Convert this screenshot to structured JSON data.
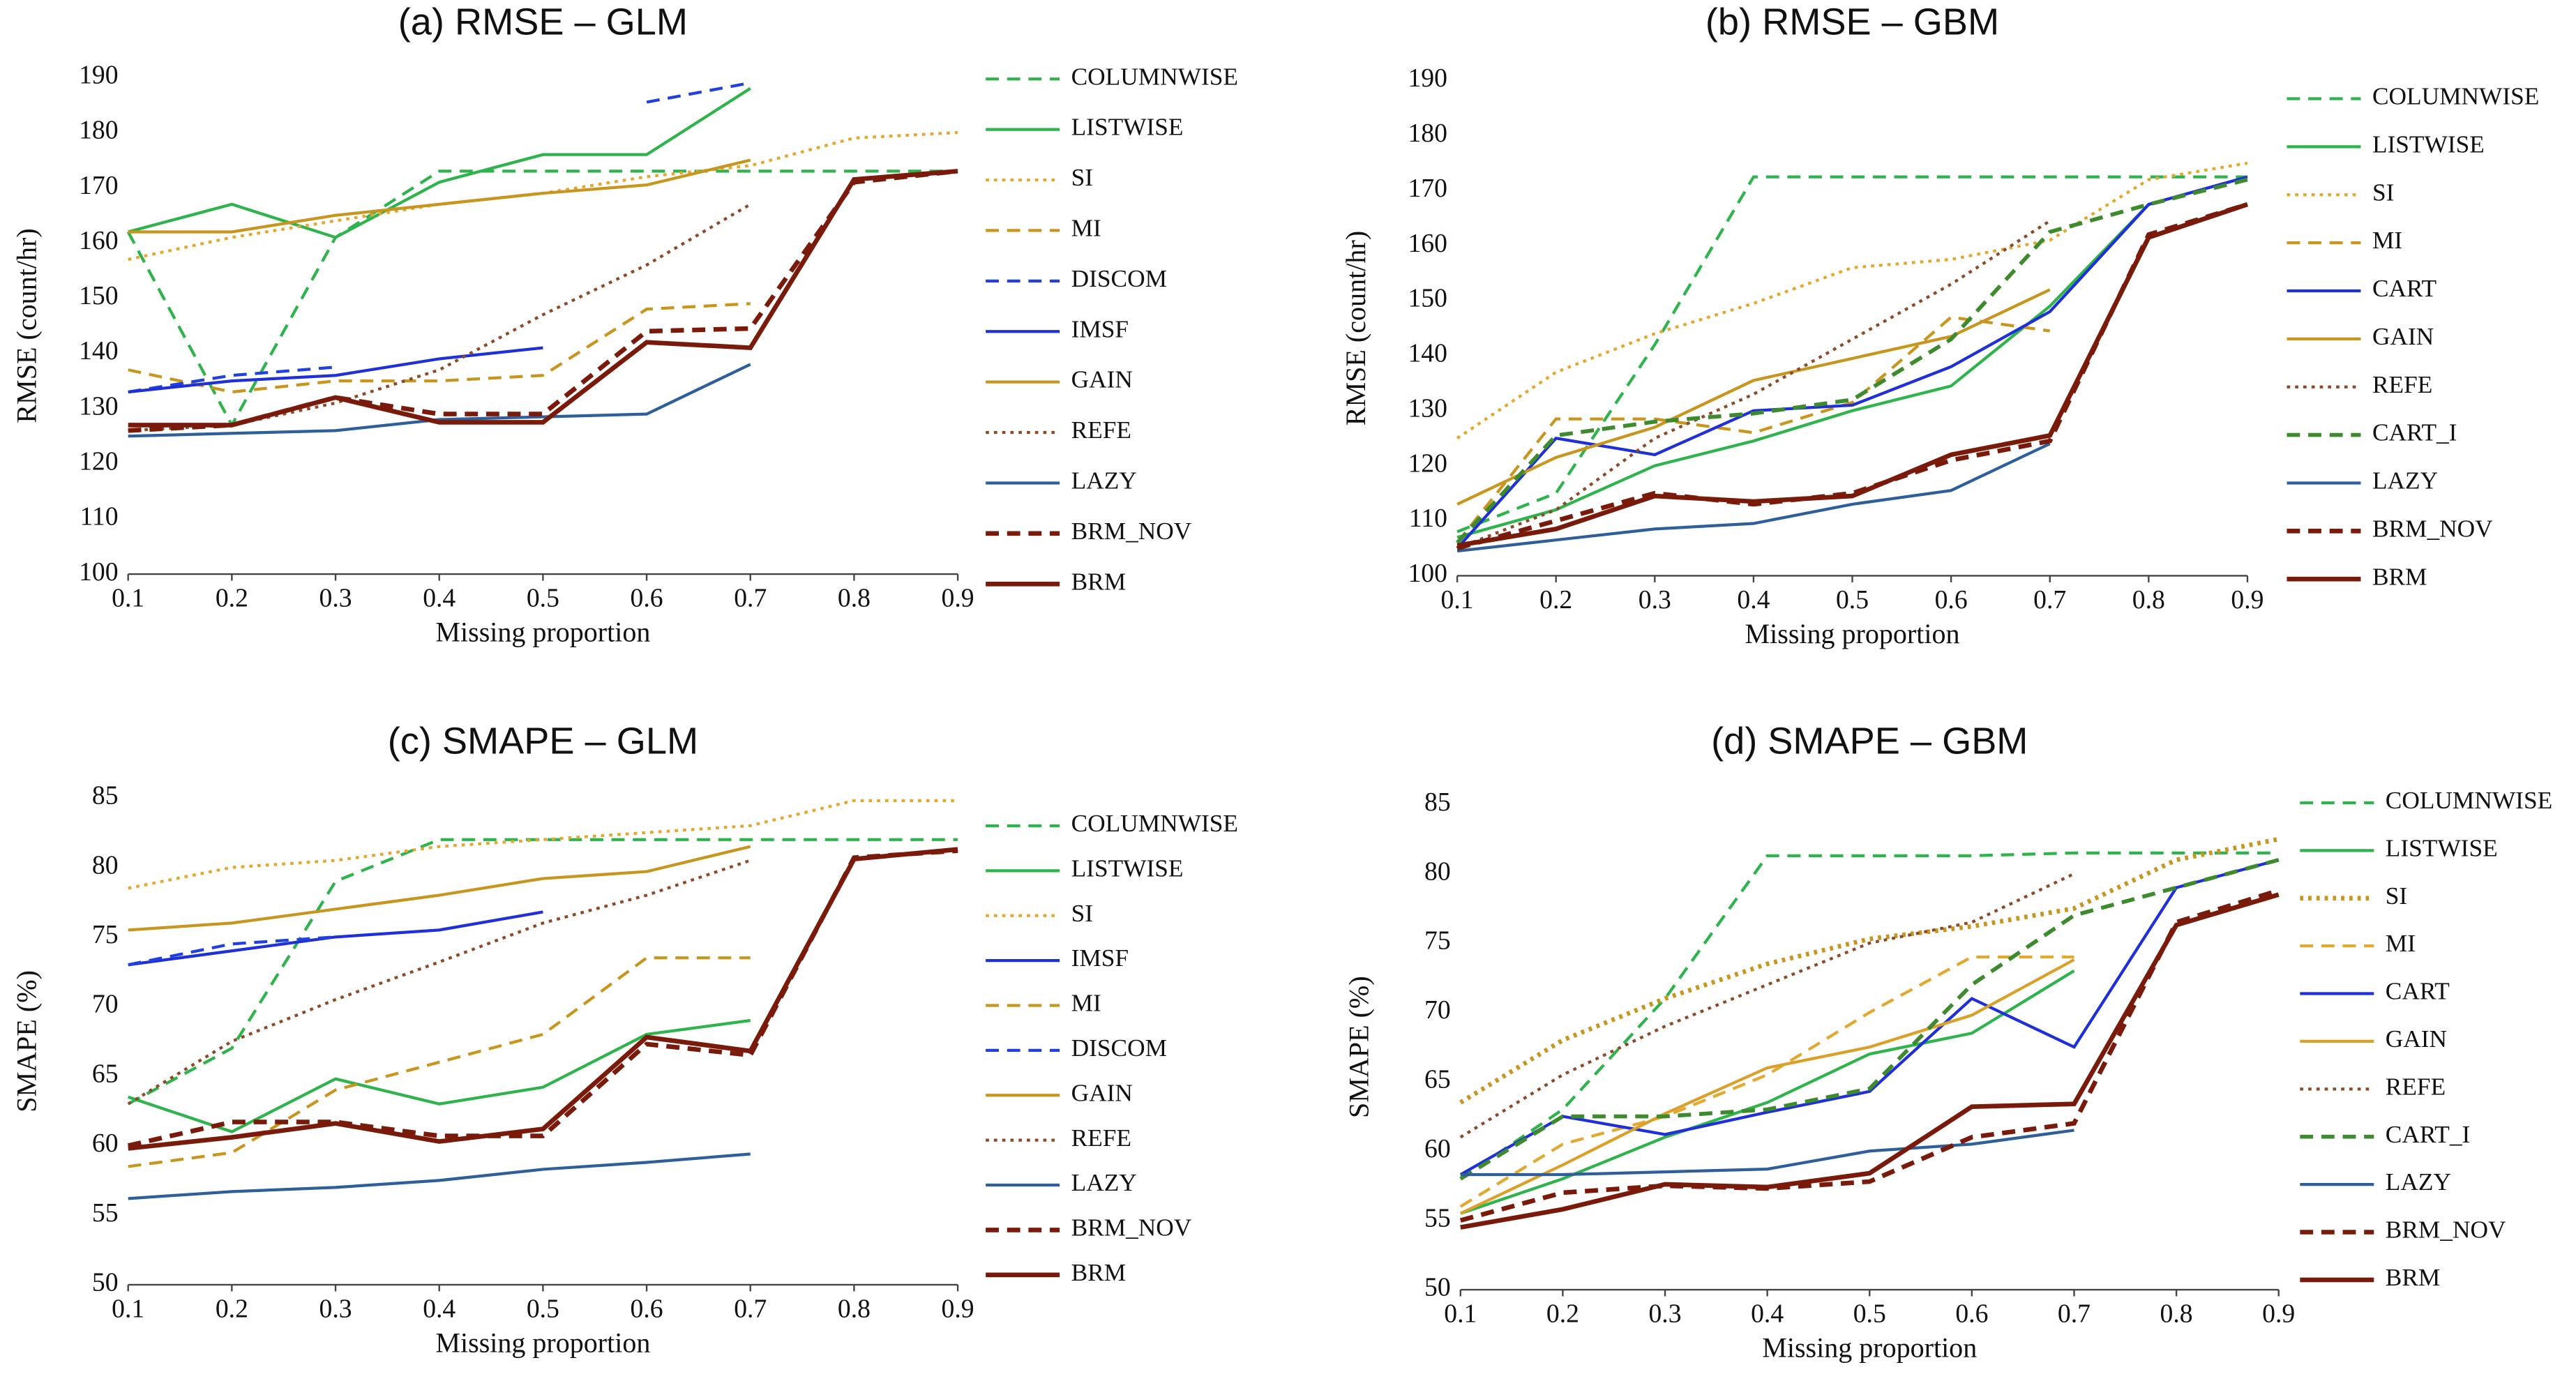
{
  "chart_data": [
    {
      "type": "line",
      "title": "(a) RMSE – GLM",
      "xlabel": "Missing proportion",
      "ylabel": "RMSE (count/hr)",
      "x": [
        0.1,
        0.2,
        0.3,
        0.4,
        0.5,
        0.6,
        0.7,
        0.8,
        0.9
      ],
      "xlim": [
        0.1,
        0.9
      ],
      "xticks": [
        0.1,
        0.2,
        0.3,
        0.4,
        0.5,
        0.6,
        0.7,
        0.8,
        0.9
      ],
      "ylim": [
        100,
        190
      ],
      "yticks": [
        100,
        110,
        120,
        130,
        140,
        150,
        160,
        170,
        180,
        190
      ],
      "legend": "right",
      "series": [
        {
          "name": "COLUMNWISE",
          "color": "#2fb34c",
          "dash": "dashed",
          "width": 1.8,
          "values": [
            162,
            127,
            161,
            173,
            173,
            173,
            173,
            173,
            173
          ]
        },
        {
          "name": "LISTWISE",
          "color": "#2fb34c",
          "dash": "solid",
          "width": 1.8,
          "values": [
            162,
            167,
            161,
            171,
            176,
            176,
            188,
            null,
            null
          ]
        },
        {
          "name": "SI",
          "color": "#e2a830",
          "dash": "dotted",
          "width": 1.8,
          "values": [
            157,
            161,
            164,
            167,
            169,
            172,
            174,
            179,
            180
          ]
        },
        {
          "name": "MI",
          "color": "#c8961e",
          "dash": "dashed",
          "width": 1.8,
          "values": [
            137,
            133,
            135,
            135,
            136,
            148,
            149,
            null,
            null
          ]
        },
        {
          "name": "DISCOM",
          "color": "#2040e0",
          "dash": "dashed",
          "width": 1.8,
          "values": [
            133,
            136,
            137.5,
            null,
            null,
            185.5,
            189,
            null,
            null
          ]
        },
        {
          "name": "IMSF",
          "color": "#2030d8",
          "dash": "solid",
          "width": 1.8,
          "values": [
            133,
            135,
            136,
            139,
            141,
            null,
            null,
            null,
            null
          ]
        },
        {
          "name": "GAIN",
          "color": "#c8961e",
          "dash": "solid",
          "width": 1.8,
          "values": [
            162,
            162,
            165,
            167,
            169,
            170.5,
            175,
            null,
            null
          ]
        },
        {
          "name": "REFE",
          "color": "#8b4a2a",
          "dash": "dotted",
          "width": 1.8,
          "values": [
            126,
            127,
            131,
            137,
            147,
            156,
            167,
            null,
            null
          ]
        },
        {
          "name": "LAZY",
          "color": "#2e5f9a",
          "dash": "solid",
          "width": 1.8,
          "values": [
            125,
            125.5,
            126,
            128,
            128.5,
            129,
            138,
            null,
            null
          ]
        },
        {
          "name": "BRM_NOV",
          "color": "#7a1a0a",
          "dash": "dashed",
          "width": 2.8,
          "values": [
            126,
            127,
            132,
            129,
            129,
            144,
            144.5,
            171,
            173
          ]
        },
        {
          "name": "BRM",
          "color": "#7a1a0a",
          "dash": "solid",
          "width": 2.8,
          "values": [
            127,
            127,
            132,
            127.5,
            127.5,
            142,
            141,
            171.5,
            173
          ]
        }
      ]
    },
    {
      "type": "line",
      "title": "(b) RMSE – GBM",
      "xlabel": "Missing proportion",
      "ylabel": "RMSE (count/hr)",
      "x": [
        0.1,
        0.2,
        0.3,
        0.4,
        0.5,
        0.6,
        0.7,
        0.8,
        0.9
      ],
      "xlim": [
        0.1,
        0.9
      ],
      "xticks": [
        0.1,
        0.2,
        0.3,
        0.4,
        0.5,
        0.6,
        0.7,
        0.8,
        0.9
      ],
      "ylim": [
        100,
        190
      ],
      "yticks": [
        100,
        110,
        120,
        130,
        140,
        150,
        160,
        170,
        180,
        190
      ],
      "legend": "right",
      "series": [
        {
          "name": "COLUMNWISE",
          "color": "#2fb34c",
          "dash": "dashed",
          "width": 1.8,
          "values": [
            108,
            115,
            142,
            172.5,
            172.5,
            172.5,
            172.5,
            172.5,
            172.5
          ]
        },
        {
          "name": "LISTWISE",
          "color": "#2fb34c",
          "dash": "solid",
          "width": 1.8,
          "values": [
            107,
            112,
            120,
            124.5,
            130,
            134.5,
            149,
            167.5,
            172.5
          ]
        },
        {
          "name": "SI",
          "color": "#e2a830",
          "dash": "dotted",
          "width": 1.8,
          "values": [
            125,
            137,
            144,
            149.5,
            156,
            157.5,
            161,
            172,
            175
          ]
        },
        {
          "name": "MI",
          "color": "#c8961e",
          "dash": "dashed",
          "width": 1.8,
          "values": [
            106,
            128.5,
            128.5,
            126,
            131.5,
            147,
            144.5,
            null,
            null
          ]
        },
        {
          "name": "CART",
          "color": "#2030d8",
          "dash": "solid",
          "width": 1.8,
          "values": [
            105,
            125,
            122,
            130,
            131,
            138,
            148,
            167.5,
            172.5
          ]
        },
        {
          "name": "GAIN",
          "color": "#c8961e",
          "dash": "solid",
          "width": 1.8,
          "values": [
            113,
            121.5,
            127,
            135.5,
            139.5,
            143.5,
            152,
            null,
            null
          ]
        },
        {
          "name": "REFE",
          "color": "#8b4a2a",
          "dash": "dotted",
          "width": 1.8,
          "values": [
            105,
            112,
            125,
            133,
            143,
            153,
            164.5,
            null,
            null
          ]
        },
        {
          "name": "CART_I",
          "color": "#3e8a2e",
          "dash": "dashed",
          "width": 2.4,
          "values": [
            106,
            125.5,
            128,
            129.5,
            132,
            143,
            162.5,
            167.5,
            172
          ]
        },
        {
          "name": "LAZY",
          "color": "#2e5f9a",
          "dash": "solid",
          "width": 1.8,
          "values": [
            104.5,
            106.5,
            108.5,
            109.5,
            113,
            115.5,
            124,
            null,
            null
          ]
        },
        {
          "name": "BRM_NOV",
          "color": "#7a1a0a",
          "dash": "dashed",
          "width": 2.8,
          "values": [
            105,
            110,
            115,
            113,
            115,
            121,
            124.5,
            162,
            167.5
          ]
        },
        {
          "name": "BRM",
          "color": "#7a1a0a",
          "dash": "solid",
          "width": 2.8,
          "values": [
            105.5,
            108.5,
            114.5,
            113.5,
            114.5,
            122,
            125.5,
            161.5,
            167.5
          ]
        }
      ]
    },
    {
      "type": "line",
      "title": "(c) SMAPE – GLM",
      "xlabel": "Missing proportion",
      "ylabel": "SMAPE (%)",
      "x": [
        0.1,
        0.2,
        0.3,
        0.4,
        0.5,
        0.6,
        0.7,
        0.8,
        0.9
      ],
      "xlim": [
        0.1,
        0.9
      ],
      "xticks": [
        0.1,
        0.2,
        0.3,
        0.4,
        0.5,
        0.6,
        0.7,
        0.8,
        0.9
      ],
      "ylim": [
        50,
        85
      ],
      "yticks": [
        50,
        55,
        60,
        65,
        70,
        75,
        80,
        85
      ],
      "legend": "right",
      "series": [
        {
          "name": "COLUMNWISE",
          "color": "#2fb34c",
          "dash": "dashed",
          "width": 1.8,
          "values": [
            63,
            67,
            79,
            82,
            82,
            82,
            82,
            82,
            82
          ]
        },
        {
          "name": "LISTWISE",
          "color": "#2fb34c",
          "dash": "solid",
          "width": 1.8,
          "values": [
            63.5,
            61,
            64.8,
            63,
            64.2,
            68,
            69,
            null,
            null
          ]
        },
        {
          "name": "SI",
          "color": "#e2a830",
          "dash": "dotted",
          "width": 1.8,
          "values": [
            78.5,
            80,
            80.5,
            81.5,
            82,
            82.5,
            83,
            84.8,
            84.8
          ]
        },
        {
          "name": "IMSF",
          "color": "#2030d8",
          "dash": "solid",
          "width": 1.8,
          "values": [
            73,
            74,
            75,
            75.5,
            76.8,
            null,
            null,
            null,
            null
          ]
        },
        {
          "name": "MI",
          "color": "#c8961e",
          "dash": "dashed",
          "width": 1.8,
          "values": [
            58.5,
            59.5,
            64,
            66,
            68,
            73.5,
            73.5,
            null,
            null
          ]
        },
        {
          "name": "DISCOM",
          "color": "#2040e0",
          "dash": "dashed",
          "width": 1.8,
          "values": [
            73,
            74.5,
            75,
            null,
            null,
            null,
            null,
            null,
            null
          ]
        },
        {
          "name": "GAIN",
          "color": "#c8961e",
          "dash": "solid",
          "width": 1.8,
          "values": [
            75.5,
            76,
            77,
            78,
            79.2,
            79.7,
            81.5,
            null,
            null
          ]
        },
        {
          "name": "REFE",
          "color": "#8b4a2a",
          "dash": "dotted",
          "width": 1.8,
          "values": [
            63,
            67.5,
            70.5,
            73.2,
            76,
            78,
            80.5,
            null,
            null
          ]
        },
        {
          "name": "LAZY",
          "color": "#2e5f9a",
          "dash": "solid",
          "width": 1.8,
          "values": [
            56.2,
            56.7,
            57,
            57.5,
            58.3,
            58.8,
            59.4,
            null,
            null
          ]
        },
        {
          "name": "BRM_NOV",
          "color": "#7a1a0a",
          "dash": "dashed",
          "width": 2.8,
          "values": [
            60,
            61.7,
            61.7,
            60.7,
            60.7,
            67.3,
            66.5,
            80.7,
            81.2
          ]
        },
        {
          "name": "BRM",
          "color": "#7a1a0a",
          "dash": "solid",
          "width": 2.8,
          "values": [
            59.8,
            60.6,
            61.6,
            60.3,
            61.2,
            67.8,
            66.8,
            80.6,
            81.3
          ]
        }
      ]
    },
    {
      "type": "line",
      "title": "(d) SMAPE – GBM",
      "xlabel": "Missing proportion",
      "ylabel": "SMAPE (%)",
      "x": [
        0.1,
        0.2,
        0.3,
        0.4,
        0.5,
        0.6,
        0.7,
        0.8,
        0.9
      ],
      "xlim": [
        0.1,
        0.9
      ],
      "xticks": [
        0.1,
        0.2,
        0.3,
        0.4,
        0.5,
        0.6,
        0.7,
        0.8,
        0.9
      ],
      "ylim": [
        50,
        85
      ],
      "yticks": [
        50,
        55,
        60,
        65,
        70,
        75,
        80,
        85
      ],
      "legend": "right",
      "series": [
        {
          "name": "COLUMNWISE",
          "color": "#2fb34c",
          "dash": "dashed",
          "width": 1.8,
          "values": [
            58,
            63,
            71,
            81.3,
            81.3,
            81.3,
            81.5,
            81.5,
            81.5
          ]
        },
        {
          "name": "LISTWISE",
          "color": "#2fb34c",
          "dash": "solid",
          "width": 1.8,
          "values": [
            55.5,
            58,
            61,
            63.5,
            67,
            68.5,
            73,
            null,
            null
          ]
        },
        {
          "name": "SI",
          "color": "#c8961e",
          "dash": "dotted",
          "width": 2.8,
          "values": [
            63.5,
            68,
            71,
            73.5,
            75.3,
            76.2,
            77.5,
            81,
            82.5
          ]
        },
        {
          "name": "MI",
          "color": "#e2a830",
          "dash": "dashed",
          "width": 1.8,
          "values": [
            56,
            60.5,
            62.5,
            65.5,
            70,
            74,
            74,
            null,
            null
          ]
        },
        {
          "name": "CART",
          "color": "#2030d8",
          "dash": "solid",
          "width": 1.8,
          "values": [
            58.3,
            62.5,
            61.2,
            62.8,
            64.3,
            71,
            67.5,
            79,
            81
          ]
        },
        {
          "name": "GAIN",
          "color": "#d9a02a",
          "dash": "solid",
          "width": 1.8,
          "values": [
            55.5,
            59,
            62.7,
            66,
            67.5,
            69.8,
            73.8,
            null,
            null
          ]
        },
        {
          "name": "REFE",
          "color": "#8b4a2a",
          "dash": "dotted",
          "width": 1.8,
          "values": [
            61,
            65.5,
            69,
            72,
            75,
            76.5,
            80,
            null,
            null
          ]
        },
        {
          "name": "CART_I",
          "color": "#3e8a2e",
          "dash": "dashed",
          "width": 2.4,
          "values": [
            58,
            62.5,
            62.5,
            63,
            64.5,
            72,
            77,
            79,
            81
          ]
        },
        {
          "name": "LAZY",
          "color": "#2e5f9a",
          "dash": "solid",
          "width": 1.8,
          "values": [
            58.3,
            58.3,
            58.5,
            58.7,
            60,
            60.5,
            61.5,
            null,
            null
          ]
        },
        {
          "name": "BRM_NOV",
          "color": "#7a1a0a",
          "dash": "dashed",
          "width": 2.8,
          "values": [
            55,
            57,
            57.5,
            57.3,
            57.8,
            61,
            62,
            76.5,
            78.8
          ]
        },
        {
          "name": "BRM",
          "color": "#7a1a0a",
          "dash": "solid",
          "width": 2.8,
          "values": [
            54.5,
            55.8,
            57.6,
            57.4,
            58.4,
            63.2,
            63.4,
            76.3,
            78.5
          ]
        }
      ]
    }
  ]
}
